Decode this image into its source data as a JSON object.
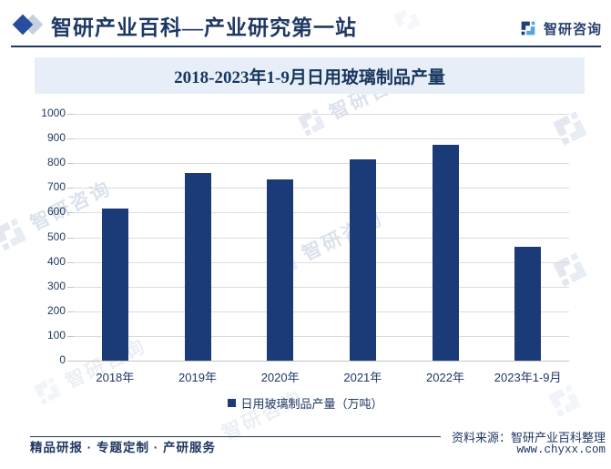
{
  "header": {
    "brand_title": "智研产业百科—产业研究第一站",
    "logo_text": "智研咨询"
  },
  "chart_data": {
    "type": "bar",
    "title": "2018-2023年1-9月日用玻璃制品产量",
    "categories": [
      "2018年",
      "2019年",
      "2020年",
      "2021年",
      "2022年",
      "2023年1-9月"
    ],
    "values": [
      615,
      760,
      733,
      816,
      874,
      462
    ],
    "series_name": "日用玻璃制品产量（万吨）",
    "xlabel": "",
    "ylabel": "",
    "ylim": [
      0,
      1000
    ],
    "ytick_step": 100,
    "grid": true,
    "legend_position": "bottom",
    "bar_color": "#1b3a78"
  },
  "footer": {
    "services": "精品研报 · 专题定制 · 产研服务",
    "source": "资料来源：智研产业百科整理",
    "website": "www.chyxx.com"
  },
  "watermark": {
    "text": "智研咨询"
  },
  "colors": {
    "navy_text": "#1f3864",
    "bar": "#1b3a78",
    "banner_bg": "#e7eef8",
    "gridline": "#dcdcdc",
    "watermark": "#dbe2ec",
    "logo_dark": "#1e3f7e",
    "logo_light": "#54a7d9"
  },
  "icons": {
    "brand_diamond": "diamond",
    "logo_glyph": "zhiyan-pinwheel"
  }
}
